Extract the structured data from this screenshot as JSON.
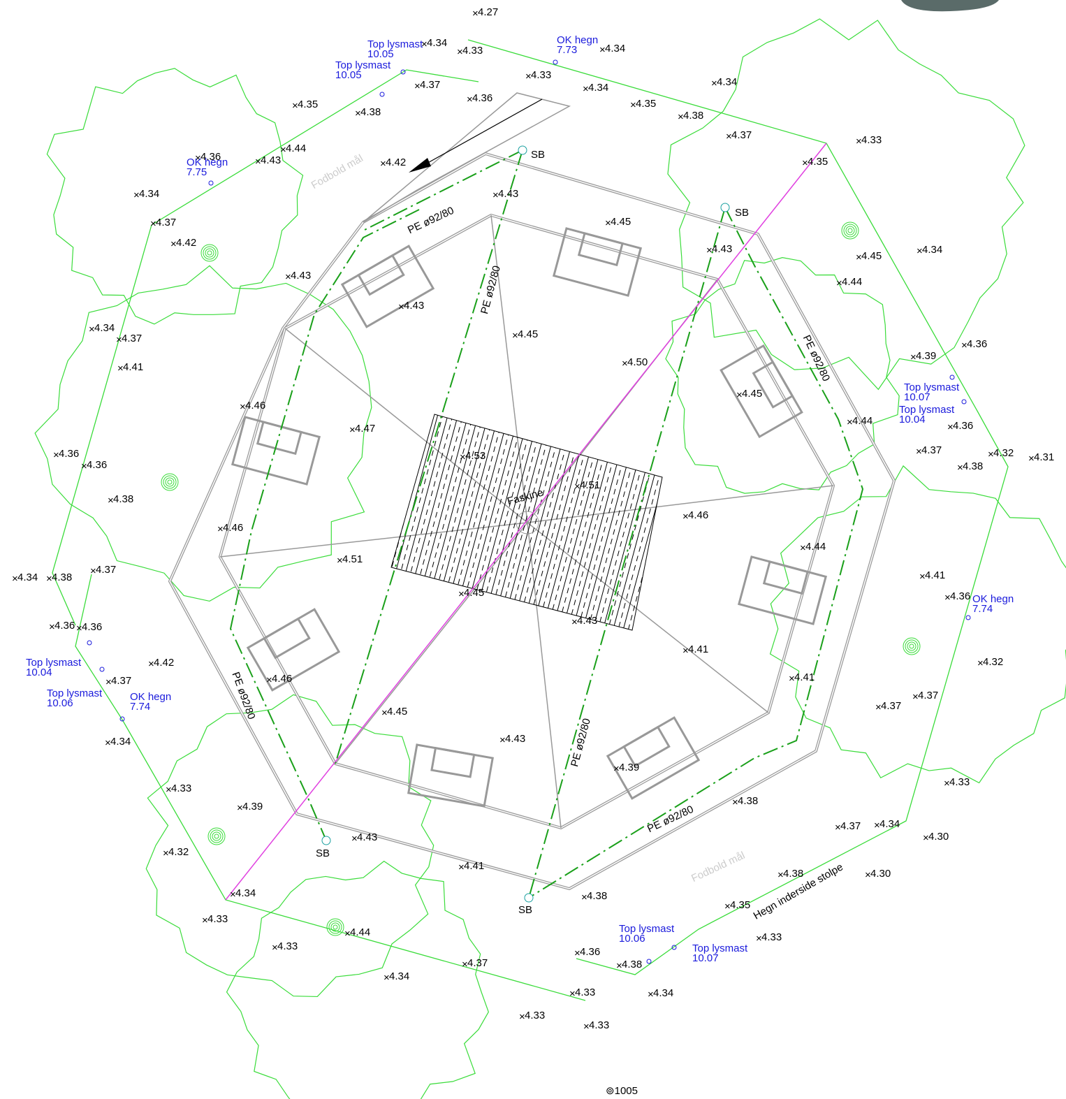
{
  "title": "Faskine",
  "spot_heights": [
    "4.27",
    "4.34",
    "4.33",
    "4.34",
    "4.33",
    "4.37",
    "4.36",
    "4.34",
    "4.35",
    "4.38",
    "4.35",
    "4.34",
    "4.38",
    "4.37",
    "4.33",
    "4.35",
    "4.36",
    "4.44",
    "4.43",
    "4.42",
    "4.43",
    "4.34",
    "4.37",
    "4.42",
    "4.45",
    "4.43",
    "4.45",
    "4.34",
    "4.43",
    "4.44",
    "4.43",
    "4.45",
    "4.34",
    "4.37",
    "4.41",
    "4.50",
    "4.36",
    "4.39",
    "4.45",
    "4.46",
    "4.47",
    "4.44",
    "4.36",
    "4.37",
    "4.32",
    "4.31",
    "4.38",
    "4.36",
    "4.36",
    "4.53",
    "4.51",
    "4.38",
    "4.46",
    "4.46",
    "4.44",
    "4.51",
    "4.37",
    "4.34",
    "4.38",
    "4.41",
    "4.45",
    "4.36",
    "4.43",
    "4.36",
    "4.36",
    "4.41",
    "4.42",
    "4.32",
    "4.46",
    "4.37",
    "4.41",
    "4.37",
    "4.37",
    "4.45",
    "4.43",
    "4.34",
    "4.39",
    "4.33",
    "4.33",
    "4.39",
    "4.38",
    "4.37",
    "4.34",
    "4.30",
    "4.43",
    "4.32",
    "4.41",
    "4.38",
    "4.30",
    "4.34",
    "4.38",
    "4.35",
    "4.33",
    "4.44",
    "4.33",
    "4.33",
    "4.36",
    "4.38",
    "4.37",
    "4.34",
    "4.33",
    "4.34",
    "4.33",
    "4.33"
  ],
  "survey_points": [
    {
      "label": "Top lysmast",
      "value": "10.05"
    },
    {
      "label": "Top lysmast",
      "value": "10.05"
    },
    {
      "label": "OK hegn",
      "value": "7.73"
    },
    {
      "label": "OK hegn",
      "value": "7.75"
    },
    {
      "label": "Top lysmast",
      "value": "10.07"
    },
    {
      "label": "Top lysmast",
      "value": "10.04"
    },
    {
      "label": "OK hegn",
      "value": "7.74"
    },
    {
      "label": "Top lysmast",
      "value": "10.04"
    },
    {
      "label": "Top lysmast",
      "value": "10.06"
    },
    {
      "label": "OK hegn",
      "value": "7.74"
    },
    {
      "label": "Top lysmast",
      "value": "10.06"
    },
    {
      "label": "Top lysmast",
      "value": "10.07"
    }
  ],
  "pipe_labels": [
    "PE ø92/80",
    "PE ø92/80",
    "PE ø92/80",
    "PE ø92/80",
    "PE ø92/80",
    "PE ø92/80"
  ],
  "manholes": [
    "SB",
    "SB",
    "SB",
    "SB"
  ],
  "goal_labels": [
    "Fodbold mål",
    "Fodbold mål"
  ],
  "fence_label": "Hegn inderside stolpe",
  "sheet_ref": "⊚1005"
}
